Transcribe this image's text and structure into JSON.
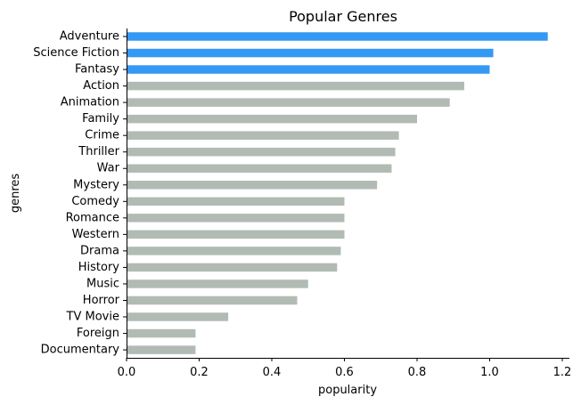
{
  "chart_data": {
    "type": "bar",
    "orientation": "horizontal",
    "title": "Popular Genres",
    "xlabel": "popularity",
    "ylabel": "genres",
    "xlim": [
      0,
      1.2
    ],
    "xticks": [
      "0.0",
      "0.2",
      "0.4",
      "0.6",
      "0.8",
      "1.0",
      "1.2"
    ],
    "grid": false,
    "legend": "none",
    "highlight_color": "#3399f3",
    "base_color": "#b1bbb3",
    "categories": [
      "Adventure",
      "Science Fiction",
      "Fantasy",
      "Action",
      "Animation",
      "Family",
      "Crime",
      "Thriller",
      "War",
      "Mystery",
      "Comedy",
      "Romance",
      "Western",
      "Drama",
      "History",
      "Music",
      "Horror",
      "TV Movie",
      "Foreign",
      "Documentary"
    ],
    "values": [
      1.16,
      1.01,
      1.0,
      0.93,
      0.89,
      0.8,
      0.75,
      0.74,
      0.73,
      0.69,
      0.6,
      0.6,
      0.6,
      0.59,
      0.58,
      0.5,
      0.47,
      0.28,
      0.19,
      0.19
    ],
    "highlighted": [
      true,
      true,
      true,
      false,
      false,
      false,
      false,
      false,
      false,
      false,
      false,
      false,
      false,
      false,
      false,
      false,
      false,
      false,
      false,
      false
    ]
  }
}
